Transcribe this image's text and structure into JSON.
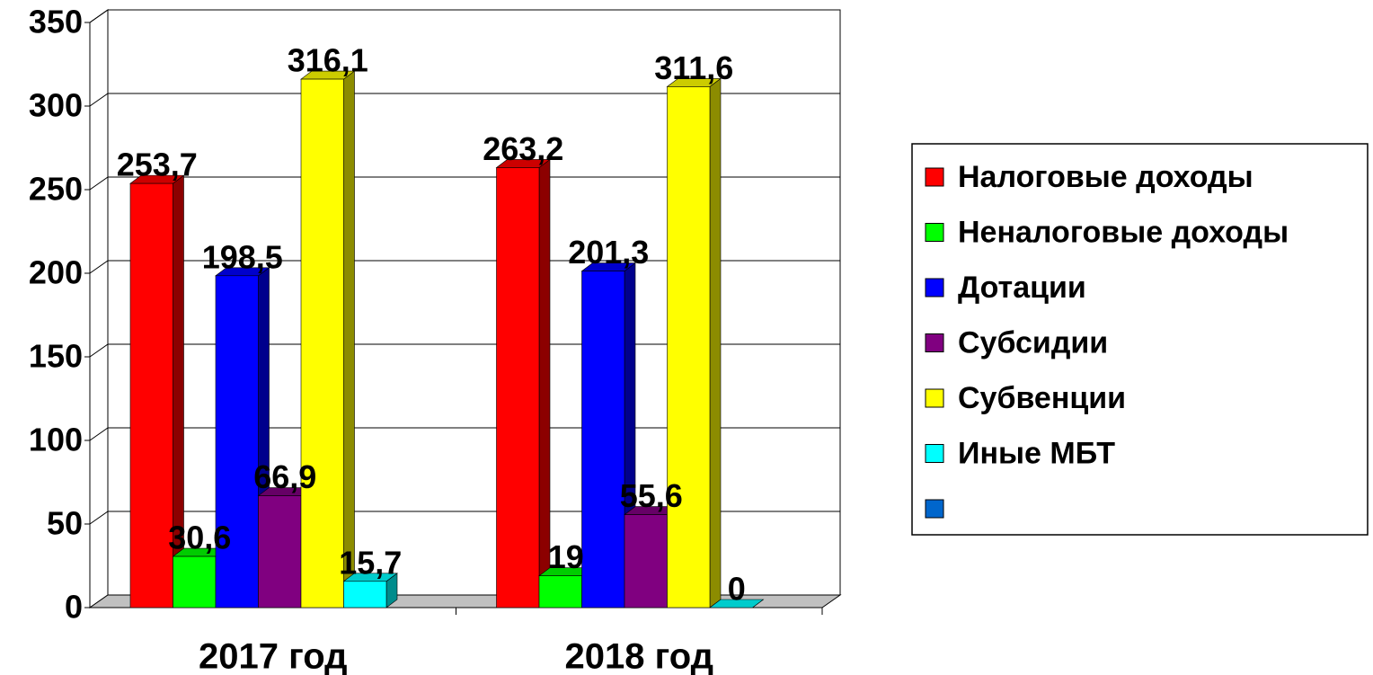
{
  "chart_data": {
    "type": "bar3d",
    "categories": [
      "2017 год",
      "2018 год"
    ],
    "series": [
      {
        "name": "Налоговые доходы",
        "color": "#ff0000",
        "values": [
          253.7,
          263.2
        ],
        "value_labels": [
          "253,7",
          "263,2"
        ]
      },
      {
        "name": "Неналоговые доходы",
        "color": "#00ff00",
        "values": [
          30.6,
          19
        ],
        "value_labels": [
          "30,6",
          "19"
        ]
      },
      {
        "name": "Дотации",
        "color": "#0000ff",
        "values": [
          198.5,
          201.3
        ],
        "value_labels": [
          "198,5",
          "201,3"
        ]
      },
      {
        "name": "Субсидии",
        "color": "#800080",
        "values": [
          66.9,
          55.6
        ],
        "value_labels": [
          "66,9",
          "55,6"
        ]
      },
      {
        "name": "Субвенции",
        "color": "#ffff00",
        "values": [
          316.1,
          311.6
        ],
        "value_labels": [
          "316,1",
          "311,6"
        ]
      },
      {
        "name": "Иные МБТ",
        "color": "#00ffff",
        "values": [
          15.7,
          0
        ],
        "value_labels": [
          "15,7",
          "0"
        ]
      },
      {
        "name": null,
        "color": "#0066cc",
        "values": [
          null,
          null
        ]
      }
    ],
    "ylim": [
      0,
      350
    ],
    "yticks": [
      0,
      50,
      100,
      150,
      200,
      250,
      300,
      350
    ],
    "grid": true,
    "legend": "right"
  }
}
